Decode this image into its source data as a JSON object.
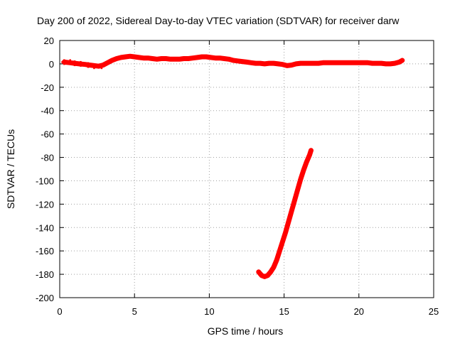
{
  "chart_data": {
    "type": "scatter",
    "title": "Day 200 of 2022, Sidereal Day-to-day VTEC variation (SDTVAR) for receiver darw",
    "xlabel": "GPS time / hours",
    "ylabel": "SDTVAR / TECUs",
    "xlim": [
      0,
      25
    ],
    "ylim": [
      -200,
      20
    ],
    "xticks": [
      0,
      5,
      10,
      15,
      20,
      25
    ],
    "xtick_labels": [
      "0",
      "5",
      "10",
      "15",
      "20",
      "25"
    ],
    "yticks": [
      20,
      0,
      -20,
      -40,
      -60,
      -80,
      -100,
      -120,
      -140,
      -160,
      -180,
      -200
    ],
    "ytick_labels": [
      "20",
      "0",
      "-20",
      "-40",
      "-60",
      "-80",
      "-100",
      "-120",
      "-140",
      "-160",
      "-180",
      "-200"
    ],
    "grid": true,
    "color": "#ff0000",
    "series": [
      {
        "name": "main",
        "x": [
          0.3,
          0.7,
          1.0,
          1.3,
          1.7,
          2.0,
          2.3,
          2.6,
          2.9,
          3.2,
          3.5,
          3.8,
          4.1,
          4.4,
          4.7,
          5.0,
          5.3,
          5.6,
          5.9,
          6.2,
          6.5,
          6.8,
          7.1,
          7.4,
          7.7,
          8.0,
          8.3,
          8.6,
          8.9,
          9.2,
          9.5,
          9.8,
          10.1,
          10.4,
          10.7,
          11.0,
          11.3,
          11.6,
          11.9,
          12.2,
          12.5,
          12.8,
          13.1,
          13.4,
          13.7,
          14.0,
          14.3,
          14.6,
          14.9,
          15.2,
          15.5,
          15.8,
          16.1,
          16.4,
          16.7,
          17.0,
          17.3,
          17.6,
          17.9,
          18.2,
          18.5,
          18.8,
          19.1,
          19.4,
          19.7,
          20.0,
          20.3,
          20.6,
          20.9,
          21.2,
          21.5,
          21.8,
          22.1,
          22.4,
          22.7,
          22.9
        ],
        "y": [
          1.5,
          1.0,
          0.5,
          0.0,
          -0.5,
          -1.0,
          -1.5,
          -2.0,
          -1.0,
          1.0,
          3.0,
          4.5,
          5.5,
          6.0,
          6.5,
          6.0,
          5.5,
          5.0,
          5.0,
          4.5,
          4.0,
          4.5,
          4.5,
          4.0,
          4.0,
          4.0,
          4.5,
          4.5,
          5.0,
          5.5,
          6.0,
          6.0,
          5.5,
          5.0,
          5.0,
          4.5,
          4.0,
          3.0,
          2.5,
          2.0,
          1.5,
          1.0,
          0.5,
          0.5,
          0.0,
          0.5,
          0.5,
          0.0,
          -0.5,
          -1.5,
          -1.0,
          0.0,
          0.5,
          0.5,
          0.5,
          0.5,
          0.5,
          1.0,
          1.0,
          1.0,
          1.0,
          1.0,
          1.0,
          1.0,
          1.0,
          1.0,
          1.0,
          1.0,
          0.5,
          0.5,
          0.5,
          0.0,
          0.0,
          0.5,
          1.5,
          3.0
        ],
        "thickness": "thick"
      },
      {
        "name": "segment",
        "x": [
          13.3,
          13.5,
          13.7,
          13.9,
          14.1,
          14.3,
          14.5,
          14.7,
          14.9,
          15.1,
          15.3,
          15.5,
          15.7,
          15.9,
          16.1,
          16.3,
          16.5,
          16.7,
          16.8
        ],
        "y": [
          -178,
          -181,
          -182,
          -181,
          -178,
          -174,
          -168,
          -160,
          -152,
          -144,
          -135,
          -126,
          -117,
          -108,
          -99,
          -91,
          -84,
          -78,
          -74
        ],
        "thickness": "thick"
      }
    ],
    "markers": [
      {
        "x": 0.3,
        "y": 1.5
      },
      {
        "x": 0.7,
        "y": 1.5
      },
      {
        "x": 1.0,
        "y": 0.5
      },
      {
        "x": 1.4,
        "y": 0.0
      },
      {
        "x": 1.9,
        "y": -1.0
      },
      {
        "x": 2.3,
        "y": -2.0
      },
      {
        "x": 2.8,
        "y": -2.0
      }
    ]
  }
}
